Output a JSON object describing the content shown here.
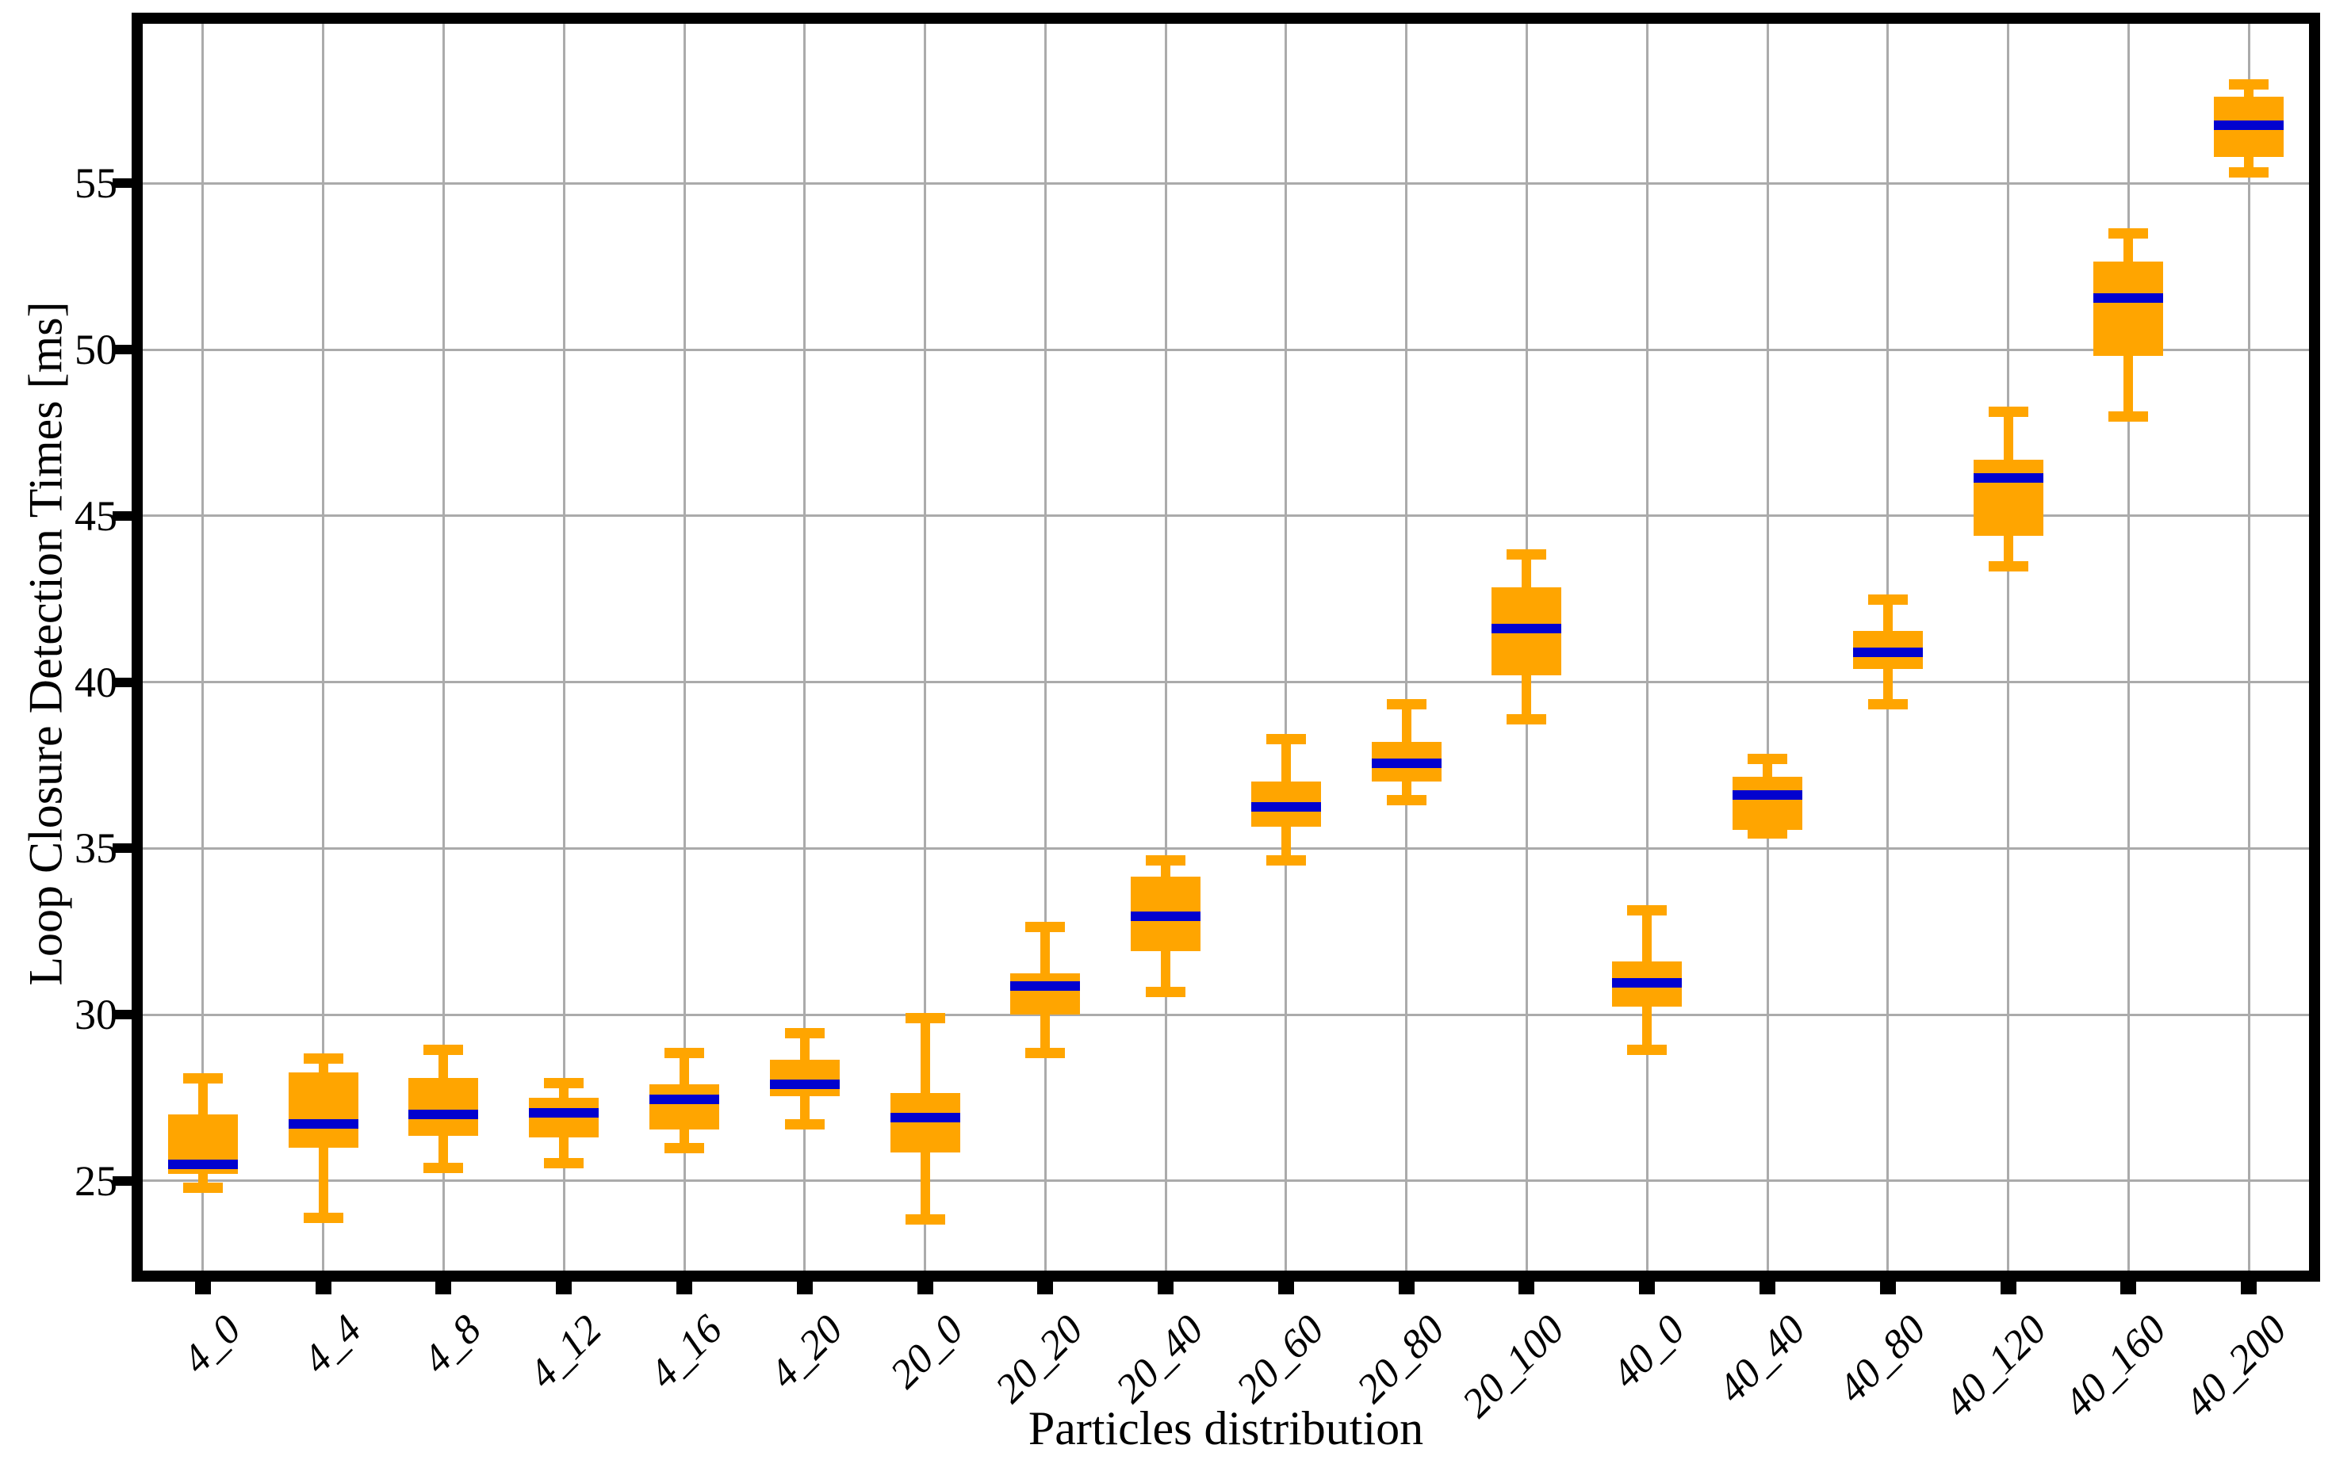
{
  "chart_data": {
    "type": "boxplot",
    "title": "",
    "xlabel": "Particles distribution",
    "ylabel": "Loop Closure Detection Times [ms]",
    "ylim": [
      22.3,
      59.8
    ],
    "yticks": [
      25,
      30,
      35,
      40,
      45,
      50,
      55
    ],
    "grid": true,
    "legend": "none",
    "categories": [
      "4_0",
      "4_4",
      "4_8",
      "4_12",
      "4_16",
      "4_20",
      "20_0",
      "20_20",
      "20_40",
      "20_60",
      "20_80",
      "20_100",
      "40_0",
      "40_40",
      "40_80",
      "40_120",
      "40_160",
      "40_200"
    ],
    "boxes": [
      {
        "label": "4_0",
        "whislo": 24.8,
        "q1": 25.2,
        "med": 25.5,
        "q3": 27.0,
        "whishi": 28.1
      },
      {
        "label": "4_4",
        "whislo": 23.9,
        "q1": 26.0,
        "med": 26.7,
        "q3": 28.25,
        "whishi": 28.7
      },
      {
        "label": "4_8",
        "whislo": 25.4,
        "q1": 26.35,
        "med": 27.0,
        "q3": 28.1,
        "whishi": 28.95
      },
      {
        "label": "4_12",
        "whislo": 25.55,
        "q1": 26.3,
        "med": 27.05,
        "q3": 27.5,
        "whishi": 27.95
      },
      {
        "label": "4_16",
        "whislo": 26.0,
        "q1": 26.55,
        "med": 27.45,
        "q3": 27.9,
        "whishi": 28.85
      },
      {
        "label": "4_20",
        "whislo": 26.7,
        "q1": 27.55,
        "med": 27.9,
        "q3": 28.65,
        "whishi": 29.45
      },
      {
        "label": "20_0",
        "whislo": 23.85,
        "q1": 25.85,
        "med": 26.9,
        "q3": 27.65,
        "whishi": 29.9
      },
      {
        "label": "20_20",
        "whislo": 28.85,
        "q1": 30.0,
        "med": 30.85,
        "q3": 31.25,
        "whishi": 32.65
      },
      {
        "label": "20_40",
        "whislo": 30.7,
        "q1": 31.9,
        "med": 32.95,
        "q3": 34.15,
        "whishi": 34.65
      },
      {
        "label": "20_60",
        "whislo": 34.65,
        "q1": 35.65,
        "med": 36.25,
        "q3": 37.0,
        "whishi": 38.3
      },
      {
        "label": "20_80",
        "whislo": 36.45,
        "q1": 37.0,
        "med": 37.55,
        "q3": 38.2,
        "whishi": 39.35
      },
      {
        "label": "20_100",
        "whislo": 38.9,
        "q1": 40.2,
        "med": 41.6,
        "q3": 42.85,
        "whishi": 43.85
      },
      {
        "label": "40_0",
        "whislo": 28.95,
        "q1": 30.25,
        "med": 30.95,
        "q3": 31.6,
        "whishi": 33.15
      },
      {
        "label": "40_40",
        "whislo": 35.45,
        "q1": 35.55,
        "med": 36.6,
        "q3": 37.15,
        "whishi": 37.7
      },
      {
        "label": "40_80",
        "whislo": 39.35,
        "q1": 40.4,
        "med": 40.9,
        "q3": 41.55,
        "whishi": 42.5
      },
      {
        "label": "40_120",
        "whislo": 43.5,
        "q1": 44.4,
        "med": 46.15,
        "q3": 46.7,
        "whishi": 48.15
      },
      {
        "label": "40_160",
        "whislo": 48.0,
        "q1": 49.8,
        "med": 51.55,
        "q3": 52.65,
        "whishi": 53.5
      },
      {
        "label": "40_200",
        "whislo": 55.35,
        "q1": 55.8,
        "med": 56.75,
        "q3": 57.6,
        "whishi": 58.0
      }
    ],
    "colors": {
      "box_fill": "#FFA500",
      "whisker": "#FFA500",
      "median": "#0202CF",
      "grid": "#ABABAB",
      "axis": "#000000",
      "background": "#FFFFFF"
    }
  }
}
